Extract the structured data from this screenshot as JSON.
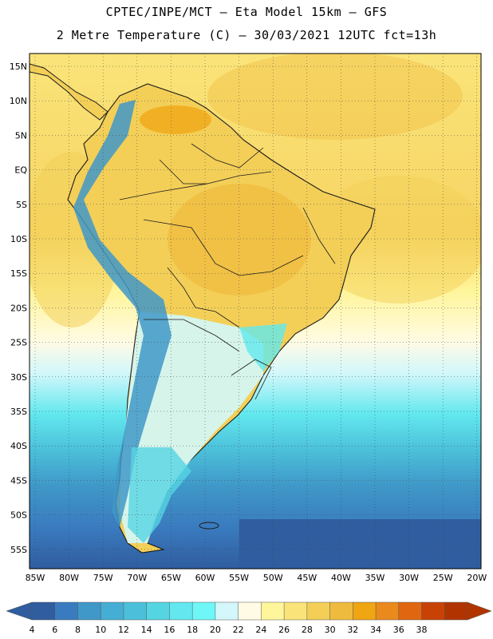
{
  "title_line1": "CPTEC/INPE/MCT –  Eta Model 15km – GFS",
  "title_line2": "2 Metre Temperature (C) – 30/03/2021 12UTC fct=13h",
  "lat_labels": [
    "15N",
    "10N",
    "5N",
    "EQ",
    "5S",
    "10S",
    "15S",
    "20S",
    "25S",
    "30S",
    "35S",
    "40S",
    "45S",
    "50S",
    "55S"
  ],
  "lon_labels": [
    "85W",
    "80W",
    "75W",
    "70W",
    "65W",
    "60W",
    "55W",
    "50W",
    "45W",
    "40W",
    "35W",
    "30W",
    "25W",
    "20W"
  ],
  "colorbar": {
    "labels": [
      "4",
      "6",
      "8",
      "10",
      "12",
      "14",
      "16",
      "18",
      "20",
      "22",
      "24",
      "26",
      "28",
      "30",
      "32",
      "34",
      "36",
      "38"
    ],
    "colors": [
      "#2f5d9f",
      "#3a7bbf",
      "#3f98c8",
      "#45aed4",
      "#4cc0da",
      "#55d4e2",
      "#62e8ee",
      "#6ff7f7",
      "#d3f7fb",
      "#fffbe4",
      "#fff59a",
      "#fae47a",
      "#f3cf58",
      "#efbb3e",
      "#f0a513",
      "#ea8a1c",
      "#e0670f",
      "#c84206",
      "#b13400"
    ]
  },
  "colors": {
    "land_border": "#1a1a1a",
    "grid": "#444444"
  }
}
